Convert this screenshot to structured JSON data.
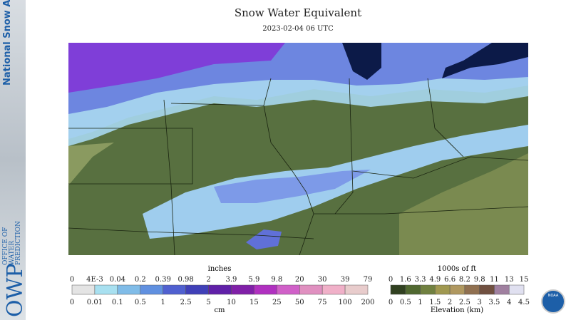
{
  "sidebar": {
    "title": "National Snow Analysis",
    "logo": "OWP",
    "office": "OFFICE OF WATER PREDICTION"
  },
  "header": {
    "title": "Snow Water Equivalent",
    "subtitle": "2023-02-04 06 UTC"
  },
  "swe_legend": {
    "top_unit": "inches",
    "inches": [
      "0",
      "4E-3",
      "0.04",
      "0.2",
      "0.39",
      "0.98",
      "2",
      "3.9",
      "5.9",
      "9.8",
      "20",
      "30",
      "39",
      "79"
    ],
    "cm": [
      "0",
      "0.01",
      "0.1",
      "0.5",
      "1",
      "2.5",
      "5",
      "10",
      "15",
      "25",
      "50",
      "75",
      "100",
      "200"
    ],
    "bottom_unit": "cm"
  },
  "elevation_legend": {
    "top_unit": "1000s of ft",
    "ft": [
      "0",
      "1.6",
      "3.3",
      "4.9",
      "6.6",
      "8.2",
      "9.8",
      "11",
      "13",
      "15"
    ],
    "km": [
      "0",
      "0.5",
      "1",
      "1.5",
      "2",
      "2.5",
      "3",
      "3.5",
      "4",
      "4.5"
    ],
    "bottom_unit": "Elevation (km)"
  },
  "badge": "NOAA"
}
